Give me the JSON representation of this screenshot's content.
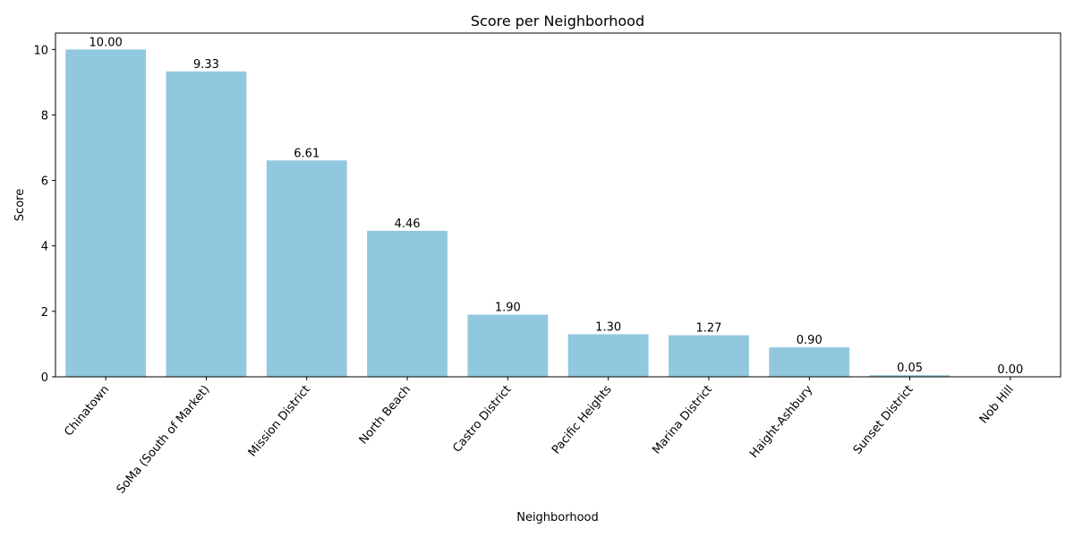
{
  "chart_data": {
    "type": "bar",
    "title": "Score per Neighborhood",
    "xlabel": "Neighborhood",
    "ylabel": "Score",
    "categories": [
      "Chinatown",
      "SoMa (South of Market)",
      "Mission District",
      "North Beach",
      "Castro District",
      "Pacific Heights",
      "Marina District",
      "Haight-Ashbury",
      "Sunset District",
      "Nob Hill"
    ],
    "values": [
      10.0,
      9.33,
      6.61,
      4.46,
      1.9,
      1.3,
      1.27,
      0.9,
      0.05,
      0.0
    ],
    "data_labels": [
      "10.00",
      "9.33",
      "6.61",
      "4.46",
      "1.90",
      "1.30",
      "1.27",
      "0.90",
      "0.05",
      "0.00"
    ],
    "yticks": [
      0,
      2,
      4,
      6,
      8,
      10
    ],
    "ylim": [
      0,
      10.5
    ],
    "bar_color": "#92c8df",
    "grid": false,
    "legend": false
  }
}
